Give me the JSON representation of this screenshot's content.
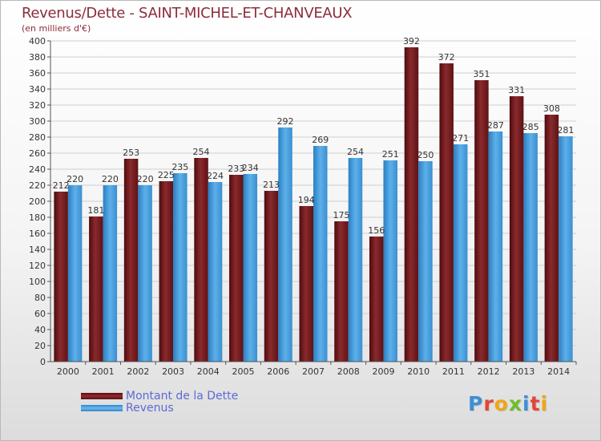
{
  "header": {
    "title": "Revenus/Dette - SAINT-MICHEL-ET-CHANVEAUX",
    "subtitle": "(en milliers d'€)"
  },
  "chart_data": {
    "type": "bar",
    "title": "Revenus/Dette - SAINT-MICHEL-ET-CHANVEAUX",
    "subtitle": "(en milliers d'€)",
    "xlabel": "",
    "ylabel": "",
    "categories": [
      "2000",
      "2001",
      "2002",
      "2003",
      "2004",
      "2005",
      "2006",
      "2007",
      "2008",
      "2009",
      "2010",
      "2011",
      "2012",
      "2013",
      "2014"
    ],
    "series": [
      {
        "name": "Montant de la Dette",
        "color": "#7a1f22",
        "values": [
          212,
          181,
          253,
          225,
          254,
          233,
          213,
          194,
          175,
          156,
          392,
          372,
          351,
          331,
          308
        ]
      },
      {
        "name": "Revenus",
        "color": "#4aa3e3",
        "values": [
          220,
          220,
          220,
          235,
          224,
          234,
          292,
          269,
          254,
          251,
          250,
          271,
          287,
          285,
          281
        ]
      }
    ],
    "ylim": [
      0,
      400
    ],
    "ytick_step": 20,
    "grid": true,
    "legend_position": "bottom-left",
    "data_labels": true
  },
  "legend": {
    "items": [
      {
        "label": "Montant de la Dette",
        "color": "#7a1f22"
      },
      {
        "label": "Revenus",
        "color": "#4aa3e3"
      }
    ]
  },
  "logo": {
    "text": "Proxiti",
    "letter_colors": [
      "#3f8fd6",
      "#e0463a",
      "#f2a516",
      "#6cbf2c",
      "#3f8fd6",
      "#e0463a",
      "#f2a516"
    ]
  }
}
